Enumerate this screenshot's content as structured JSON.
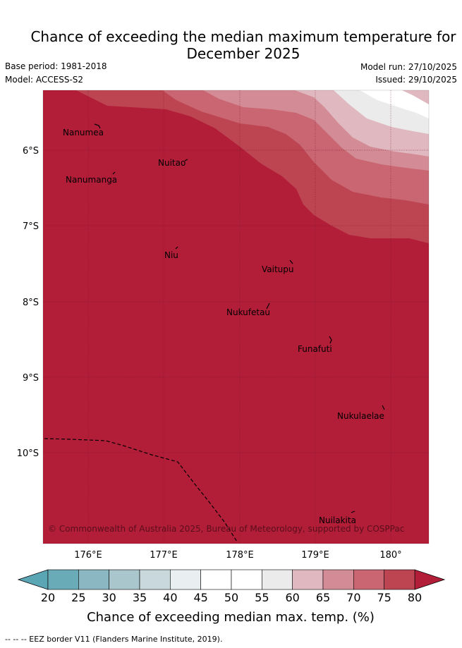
{
  "header": {
    "title_line1": "Chance of exceeding the median maximum temperature for",
    "title_line2": "December 2025",
    "base_period": "Base period: 1981-2018",
    "model": "Model: ACCESS-S2",
    "model_run": "Model run: 27/10/2025",
    "issued": "Issued: 29/10/2025"
  },
  "map": {
    "lon_ticks": [
      "176°E",
      "177°E",
      "178°E",
      "179°E",
      "180°"
    ],
    "lat_ticks": [
      "6°S",
      "7°S",
      "8°S",
      "9°S",
      "10°S"
    ],
    "places": [
      "Nanumea",
      "Nuitao",
      "Nanumanga",
      "Niu",
      "Vaitupu",
      "Nukufetau",
      "Funafuti",
      "Nukulaelae",
      "Nuilakita"
    ],
    "copyright": "© Commonwealth of Australia 2025, Bureau of Meteorology, supported by COSPPac"
  },
  "colorbar": {
    "labels": [
      "20",
      "25",
      "30",
      "35",
      "40",
      "45",
      "50",
      "55",
      "60",
      "65",
      "70",
      "75",
      "80"
    ],
    "colors": [
      "#6aabb8",
      "#8ab7c2",
      "#a8c6cb",
      "#c9d8dc",
      "#e9eff1",
      "#ffffff",
      "#ffffff",
      "#ebebeb",
      "#e0b8bf",
      "#d38c96",
      "#c96672",
      "#bd4552"
    ],
    "under_color": "#5aa6b5",
    "over_color": "#b21e38",
    "title": "Chance of exceeding median max. temp. (%)"
  },
  "footnote": "--  --  -- EEZ border V11 (Flanders Marine Institute, 2019)."
}
